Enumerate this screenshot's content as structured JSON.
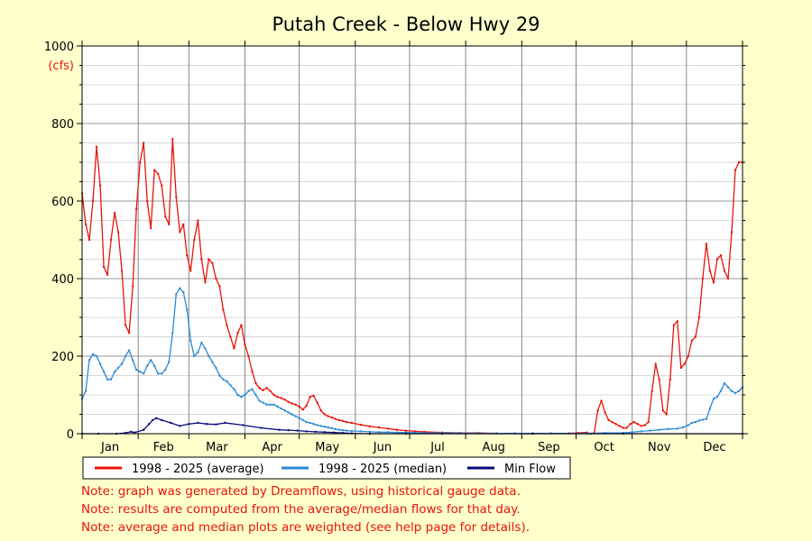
{
  "chart_data": {
    "type": "line",
    "title": "Putah Creek - Below Hwy 29",
    "ylabel": "(cfs)",
    "xlabel": "",
    "ylim": [
      0,
      1000
    ],
    "yticks": [
      0,
      200,
      400,
      600,
      800,
      1000
    ],
    "grid": true,
    "legend_position": "bottom",
    "x_unit": "day of year",
    "xlim": [
      1,
      366
    ],
    "months": [
      "Jan",
      "Feb",
      "Mar",
      "Apr",
      "May",
      "Jun",
      "Jul",
      "Aug",
      "Sep",
      "Oct",
      "Nov",
      "Dec"
    ],
    "series": [
      {
        "name": "1998 - 2025 (average)",
        "color": "#e8140a",
        "x": [
          1,
          3,
          5,
          7,
          9,
          11,
          13,
          15,
          17,
          19,
          21,
          23,
          25,
          27,
          29,
          31,
          33,
          35,
          37,
          39,
          41,
          43,
          45,
          47,
          49,
          51,
          53,
          55,
          57,
          59,
          61,
          63,
          65,
          67,
          69,
          71,
          73,
          75,
          77,
          79,
          81,
          83,
          85,
          87,
          89,
          91,
          93,
          95,
          97,
          99,
          101,
          103,
          105,
          107,
          109,
          111,
          113,
          115,
          117,
          119,
          121,
          123,
          125,
          127,
          129,
          131,
          133,
          135,
          137,
          139,
          141,
          143,
          145,
          147,
          150,
          155,
          160,
          165,
          170,
          175,
          180,
          185,
          190,
          200,
          210,
          220,
          230,
          240,
          250,
          260,
          270,
          275,
          280,
          282,
          284,
          286,
          288,
          290,
          292,
          294,
          296,
          298,
          300,
          302,
          304,
          306,
          308,
          310,
          312,
          314,
          316,
          318,
          320,
          322,
          324,
          326,
          328,
          330,
          332,
          334,
          336,
          338,
          340,
          342,
          344,
          346,
          348,
          350,
          352,
          354,
          356,
          358,
          360,
          362,
          364,
          366
        ],
        "values": [
          620,
          540,
          500,
          600,
          740,
          640,
          430,
          410,
          500,
          570,
          520,
          420,
          280,
          260,
          380,
          580,
          700,
          750,
          600,
          530,
          680,
          670,
          640,
          560,
          540,
          760,
          610,
          520,
          540,
          460,
          420,
          500,
          550,
          450,
          390,
          450,
          440,
          400,
          380,
          320,
          280,
          250,
          220,
          260,
          280,
          230,
          200,
          160,
          130,
          118,
          112,
          118,
          110,
          100,
          95,
          92,
          88,
          82,
          78,
          75,
          70,
          62,
          72,
          95,
          98,
          80,
          60,
          50,
          45,
          42,
          38,
          35,
          33,
          30,
          28,
          23,
          19,
          16,
          13,
          10,
          8,
          6,
          5,
          3,
          2,
          2,
          1,
          1,
          1,
          1,
          1,
          2,
          3,
          0,
          2,
          60,
          85,
          55,
          35,
          30,
          25,
          20,
          15,
          15,
          25,
          30,
          25,
          20,
          22,
          30,
          110,
          180,
          140,
          60,
          50,
          140,
          280,
          290,
          170,
          180,
          200,
          240,
          250,
          300,
          400,
          490,
          420,
          390,
          450,
          460,
          420,
          400,
          520,
          680,
          700,
          700
        ]
      },
      {
        "name": "1998 - 2025 (median)",
        "color": "#2a8ad8",
        "x": [
          1,
          3,
          5,
          7,
          9,
          11,
          13,
          15,
          17,
          19,
          21,
          23,
          25,
          27,
          29,
          31,
          33,
          35,
          37,
          39,
          41,
          43,
          45,
          47,
          49,
          51,
          53,
          55,
          57,
          59,
          61,
          63,
          65,
          67,
          69,
          71,
          73,
          75,
          77,
          79,
          81,
          83,
          85,
          87,
          89,
          91,
          93,
          95,
          97,
          99,
          101,
          103,
          105,
          107,
          109,
          111,
          113,
          115,
          117,
          119,
          121,
          123,
          125,
          127,
          129,
          131,
          133,
          135,
          137,
          139,
          141,
          143,
          145,
          147,
          150,
          155,
          160,
          165,
          170,
          175,
          180,
          190,
          200,
          220,
          240,
          260,
          280,
          290,
          300,
          305,
          310,
          315,
          320,
          325,
          330,
          333,
          336,
          338,
          340,
          342,
          344,
          346,
          348,
          350,
          352,
          354,
          356,
          358,
          360,
          362,
          364,
          366
        ],
        "values": [
          90,
          110,
          190,
          205,
          200,
          180,
          160,
          140,
          140,
          160,
          170,
          180,
          200,
          215,
          190,
          165,
          160,
          155,
          175,
          190,
          175,
          155,
          155,
          165,
          185,
          260,
          360,
          375,
          365,
          320,
          240,
          200,
          210,
          235,
          220,
          200,
          185,
          170,
          150,
          140,
          135,
          125,
          115,
          100,
          95,
          100,
          110,
          115,
          100,
          85,
          80,
          75,
          75,
          75,
          70,
          65,
          60,
          55,
          50,
          45,
          40,
          35,
          30,
          28,
          25,
          22,
          20,
          18,
          16,
          14,
          12,
          10,
          9,
          8,
          7,
          6,
          5,
          4,
          4,
          3,
          3,
          2,
          2,
          1,
          1,
          1,
          1,
          2,
          2,
          4,
          6,
          8,
          10,
          12,
          13,
          16,
          22,
          28,
          30,
          34,
          36,
          38,
          65,
          90,
          95,
          110,
          130,
          120,
          110,
          105,
          110,
          120
        ]
      },
      {
        "name": "Min Flow",
        "color": "#0a0a7a",
        "x": [
          1,
          10,
          20,
          25,
          28,
          30,
          35,
          38,
          40,
          42,
          45,
          50,
          55,
          60,
          65,
          70,
          75,
          80,
          90,
          100,
          110,
          115,
          120,
          125,
          130,
          135,
          140,
          145,
          150,
          160,
          180,
          200,
          250,
          300,
          366
        ],
        "values": [
          0,
          0,
          0,
          2,
          5,
          3,
          10,
          25,
          35,
          40,
          35,
          28,
          20,
          25,
          28,
          25,
          24,
          28,
          22,
          15,
          10,
          9,
          8,
          6,
          5,
          4,
          3,
          2,
          1,
          0,
          0,
          0,
          0,
          0,
          0
        ]
      }
    ]
  },
  "notes": [
    "Note: graph was generated by Dreamflows, using historical gauge data.",
    "Note: results are computed from the average/median flows for that day.",
    "Note: average and median plots are weighted (see help page for details)."
  ]
}
